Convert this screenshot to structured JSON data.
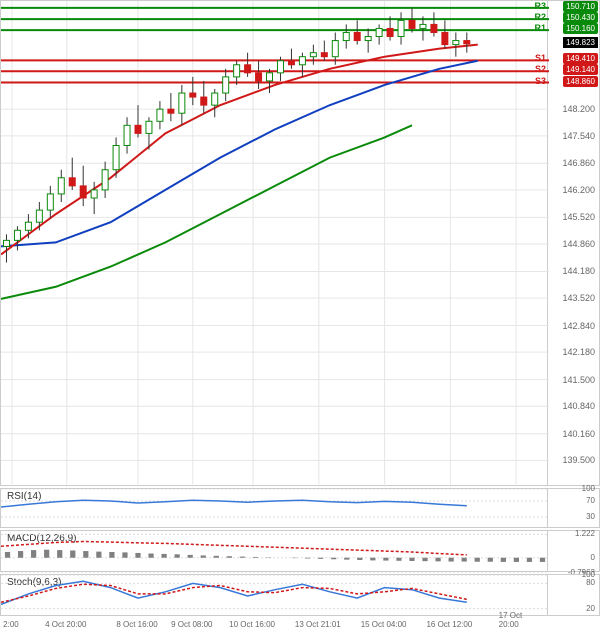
{
  "main": {
    "ylim": [
      138.84,
      150.88
    ],
    "yticks": [
      139.5,
      140.16,
      140.84,
      141.5,
      142.18,
      142.84,
      143.52,
      144.18,
      144.86,
      145.52,
      146.2,
      146.86,
      147.54,
      148.2,
      148.88
    ],
    "background_color": "#ffffff",
    "grid_color": "#e6e6e6",
    "current_price": 149.823,
    "resistance": [
      {
        "label": "R3",
        "value": 150.71,
        "color": "#0a8a0a",
        "badge_bg": "#0a8a0a"
      },
      {
        "label": "R2",
        "value": 150.43,
        "color": "#0a8a0a",
        "badge_bg": "#0a8a0a"
      },
      {
        "label": "R1",
        "value": 150.16,
        "color": "#0a8a0a",
        "badge_bg": "#0a8a0a"
      }
    ],
    "support": [
      {
        "label": "S1",
        "value": 149.41,
        "color": "#d01818",
        "badge_bg": "#d01818"
      },
      {
        "label": "S2",
        "value": 149.14,
        "color": "#d01818",
        "badge_bg": "#d01818"
      },
      {
        "label": "S3",
        "value": 148.86,
        "color": "#d01818",
        "badge_bg": "#d01818"
      }
    ],
    "xlabels": [
      "2:00",
      "4 Oct 20:00",
      "8 Oct 16:00",
      "9 Oct 08:00",
      "10 Oct 16:00",
      "13 Oct 21:01",
      "15 Oct 04:00",
      "16 Oct 12:00",
      "17 Oct 20:00"
    ],
    "xpositions": [
      0.02,
      0.12,
      0.25,
      0.35,
      0.46,
      0.58,
      0.7,
      0.82,
      0.94
    ],
    "candles": [
      {
        "x": 0.01,
        "o": 144.8,
        "h": 145.1,
        "l": 144.4,
        "c": 144.95
      },
      {
        "x": 0.03,
        "o": 144.95,
        "h": 145.3,
        "l": 144.7,
        "c": 145.2
      },
      {
        "x": 0.05,
        "o": 145.2,
        "h": 145.6,
        "l": 145.0,
        "c": 145.4
      },
      {
        "x": 0.07,
        "o": 145.4,
        "h": 145.9,
        "l": 145.2,
        "c": 145.7
      },
      {
        "x": 0.09,
        "o": 145.7,
        "h": 146.3,
        "l": 145.5,
        "c": 146.1
      },
      {
        "x": 0.11,
        "o": 146.1,
        "h": 146.7,
        "l": 145.9,
        "c": 146.5
      },
      {
        "x": 0.13,
        "o": 146.5,
        "h": 147.0,
        "l": 146.2,
        "c": 146.3
      },
      {
        "x": 0.15,
        "o": 146.3,
        "h": 146.8,
        "l": 145.8,
        "c": 146.0
      },
      {
        "x": 0.17,
        "o": 146.0,
        "h": 146.4,
        "l": 145.6,
        "c": 146.2
      },
      {
        "x": 0.19,
        "o": 146.2,
        "h": 146.9,
        "l": 146.0,
        "c": 146.7
      },
      {
        "x": 0.21,
        "o": 146.7,
        "h": 147.5,
        "l": 146.5,
        "c": 147.3
      },
      {
        "x": 0.23,
        "o": 147.3,
        "h": 148.0,
        "l": 147.1,
        "c": 147.8
      },
      {
        "x": 0.25,
        "o": 147.8,
        "h": 148.3,
        "l": 147.5,
        "c": 147.6
      },
      {
        "x": 0.27,
        "o": 147.6,
        "h": 148.0,
        "l": 147.2,
        "c": 147.9
      },
      {
        "x": 0.29,
        "o": 147.9,
        "h": 148.4,
        "l": 147.7,
        "c": 148.2
      },
      {
        "x": 0.31,
        "o": 148.2,
        "h": 148.6,
        "l": 147.9,
        "c": 148.1
      },
      {
        "x": 0.33,
        "o": 148.1,
        "h": 148.8,
        "l": 147.8,
        "c": 148.6
      },
      {
        "x": 0.35,
        "o": 148.6,
        "h": 149.0,
        "l": 148.3,
        "c": 148.5
      },
      {
        "x": 0.37,
        "o": 148.5,
        "h": 148.9,
        "l": 148.1,
        "c": 148.3
      },
      {
        "x": 0.39,
        "o": 148.3,
        "h": 148.7,
        "l": 148.0,
        "c": 148.6
      },
      {
        "x": 0.41,
        "o": 148.6,
        "h": 149.2,
        "l": 148.4,
        "c": 149.0
      },
      {
        "x": 0.43,
        "o": 149.0,
        "h": 149.4,
        "l": 148.8,
        "c": 149.3
      },
      {
        "x": 0.45,
        "o": 149.3,
        "h": 149.6,
        "l": 149.0,
        "c": 149.1
      },
      {
        "x": 0.47,
        "o": 149.1,
        "h": 149.4,
        "l": 148.7,
        "c": 148.9
      },
      {
        "x": 0.49,
        "o": 148.9,
        "h": 149.2,
        "l": 148.6,
        "c": 149.1
      },
      {
        "x": 0.51,
        "o": 149.1,
        "h": 149.5,
        "l": 148.9,
        "c": 149.4
      },
      {
        "x": 0.53,
        "o": 149.4,
        "h": 149.7,
        "l": 149.2,
        "c": 149.3
      },
      {
        "x": 0.55,
        "o": 149.3,
        "h": 149.6,
        "l": 149.0,
        "c": 149.5
      },
      {
        "x": 0.57,
        "o": 149.5,
        "h": 149.8,
        "l": 149.3,
        "c": 149.6
      },
      {
        "x": 0.59,
        "o": 149.6,
        "h": 149.9,
        "l": 149.4,
        "c": 149.5
      },
      {
        "x": 0.61,
        "o": 149.5,
        "h": 150.1,
        "l": 149.3,
        "c": 149.9
      },
      {
        "x": 0.63,
        "o": 149.9,
        "h": 150.3,
        "l": 149.7,
        "c": 150.1
      },
      {
        "x": 0.65,
        "o": 150.1,
        "h": 150.4,
        "l": 149.8,
        "c": 149.9
      },
      {
        "x": 0.67,
        "o": 149.9,
        "h": 150.2,
        "l": 149.6,
        "c": 150.0
      },
      {
        "x": 0.69,
        "o": 150.0,
        "h": 150.3,
        "l": 149.8,
        "c": 150.2
      },
      {
        "x": 0.71,
        "o": 150.2,
        "h": 150.5,
        "l": 149.9,
        "c": 150.0
      },
      {
        "x": 0.73,
        "o": 150.0,
        "h": 150.6,
        "l": 149.8,
        "c": 150.4
      },
      {
        "x": 0.75,
        "o": 150.4,
        "h": 150.7,
        "l": 150.1,
        "c": 150.2
      },
      {
        "x": 0.77,
        "o": 150.2,
        "h": 150.5,
        "l": 149.9,
        "c": 150.3
      },
      {
        "x": 0.79,
        "o": 150.3,
        "h": 150.6,
        "l": 150.0,
        "c": 150.1
      },
      {
        "x": 0.81,
        "o": 150.1,
        "h": 150.4,
        "l": 149.7,
        "c": 149.8
      },
      {
        "x": 0.83,
        "o": 149.8,
        "h": 150.1,
        "l": 149.5,
        "c": 149.9
      },
      {
        "x": 0.85,
        "o": 149.9,
        "h": 150.1,
        "l": 149.6,
        "c": 149.82
      }
    ],
    "ma_red": {
      "color": "#d01818",
      "width": 2,
      "pts": [
        [
          0.0,
          144.6
        ],
        [
          0.1,
          145.6
        ],
        [
          0.2,
          146.5
        ],
        [
          0.3,
          147.6
        ],
        [
          0.4,
          148.3
        ],
        [
          0.5,
          148.8
        ],
        [
          0.6,
          149.2
        ],
        [
          0.7,
          149.5
        ],
        [
          0.8,
          149.7
        ],
        [
          0.87,
          149.8
        ]
      ]
    },
    "ma_blue": {
      "color": "#1040c0",
      "width": 2,
      "pts": [
        [
          0.0,
          144.8
        ],
        [
          0.1,
          144.9
        ],
        [
          0.2,
          145.4
        ],
        [
          0.3,
          146.2
        ],
        [
          0.4,
          147.0
        ],
        [
          0.5,
          147.7
        ],
        [
          0.6,
          148.3
        ],
        [
          0.7,
          148.8
        ],
        [
          0.8,
          149.2
        ],
        [
          0.87,
          149.4
        ]
      ]
    },
    "ma_green": {
      "color": "#0a8a0a",
      "width": 2,
      "pts": [
        [
          0.0,
          143.5
        ],
        [
          0.1,
          143.8
        ],
        [
          0.2,
          144.3
        ],
        [
          0.3,
          144.9
        ],
        [
          0.4,
          145.6
        ],
        [
          0.5,
          146.3
        ],
        [
          0.6,
          147.0
        ],
        [
          0.7,
          147.5
        ],
        [
          0.75,
          147.8
        ]
      ]
    }
  },
  "rsi": {
    "label": "RSI(14)",
    "ylim": [
      0,
      100
    ],
    "yticks": [
      30,
      70,
      100
    ],
    "line_color": "#3878d8",
    "pts": [
      [
        0.0,
        55
      ],
      [
        0.05,
        62
      ],
      [
        0.1,
        68
      ],
      [
        0.15,
        72
      ],
      [
        0.2,
        70
      ],
      [
        0.25,
        65
      ],
      [
        0.3,
        68
      ],
      [
        0.35,
        72
      ],
      [
        0.4,
        70
      ],
      [
        0.45,
        67
      ],
      [
        0.5,
        70
      ],
      [
        0.55,
        72
      ],
      [
        0.6,
        68
      ],
      [
        0.65,
        66
      ],
      [
        0.7,
        69
      ],
      [
        0.75,
        67
      ],
      [
        0.8,
        62
      ],
      [
        0.85,
        58
      ]
    ]
  },
  "macd": {
    "label": "MACD(12,26,9)",
    "ylim": [
      -0.8,
      1.4
    ],
    "yticks": [
      -0.7963,
      0.0,
      1.222
    ],
    "line_color": "#d01818",
    "signal_color": "#808080",
    "hist_color": "#808080",
    "pts": [
      [
        0.0,
        0.6
      ],
      [
        0.05,
        0.7
      ],
      [
        0.1,
        0.8
      ],
      [
        0.15,
        0.85
      ],
      [
        0.2,
        0.82
      ],
      [
        0.25,
        0.78
      ],
      [
        0.3,
        0.75
      ],
      [
        0.35,
        0.7
      ],
      [
        0.4,
        0.65
      ],
      [
        0.45,
        0.6
      ],
      [
        0.5,
        0.55
      ],
      [
        0.55,
        0.5
      ],
      [
        0.6,
        0.45
      ],
      [
        0.65,
        0.4
      ],
      [
        0.7,
        0.35
      ],
      [
        0.75,
        0.3
      ],
      [
        0.8,
        0.22
      ],
      [
        0.85,
        0.15
      ]
    ],
    "hist": [
      0.3,
      0.35,
      0.4,
      0.42,
      0.4,
      0.38,
      0.35,
      0.32,
      0.3,
      0.28,
      0.25,
      0.22,
      0.2,
      0.18,
      0.15,
      0.12,
      0.1,
      0.08,
      0.06,
      0.04,
      0.02,
      0.0,
      -0.02,
      -0.04,
      -0.06,
      -0.08,
      -0.1,
      -0.12,
      -0.14,
      -0.15,
      -0.16,
      -0.17,
      -0.18,
      -0.19,
      -0.2,
      -0.2,
      -0.21,
      -0.21,
      -0.22,
      -0.22,
      -0.22,
      -0.22
    ]
  },
  "stoch": {
    "label": "Stoch(9,6,3)",
    "ylim": [
      0,
      100
    ],
    "yticks": [
      20,
      80,
      100
    ],
    "k_color": "#3878d8",
    "d_color": "#d01818",
    "k": [
      [
        0.0,
        30
      ],
      [
        0.05,
        55
      ],
      [
        0.1,
        75
      ],
      [
        0.15,
        85
      ],
      [
        0.2,
        70
      ],
      [
        0.25,
        45
      ],
      [
        0.3,
        60
      ],
      [
        0.35,
        80
      ],
      [
        0.4,
        70
      ],
      [
        0.45,
        50
      ],
      [
        0.5,
        65
      ],
      [
        0.55,
        78
      ],
      [
        0.6,
        60
      ],
      [
        0.65,
        45
      ],
      [
        0.7,
        70
      ],
      [
        0.75,
        65
      ],
      [
        0.8,
        45
      ],
      [
        0.85,
        35
      ]
    ],
    "d": [
      [
        0.0,
        35
      ],
      [
        0.05,
        50
      ],
      [
        0.1,
        68
      ],
      [
        0.15,
        78
      ],
      [
        0.2,
        75
      ],
      [
        0.25,
        55
      ],
      [
        0.3,
        55
      ],
      [
        0.35,
        70
      ],
      [
        0.4,
        75
      ],
      [
        0.45,
        60
      ],
      [
        0.5,
        58
      ],
      [
        0.55,
        70
      ],
      [
        0.6,
        68
      ],
      [
        0.65,
        55
      ],
      [
        0.7,
        60
      ],
      [
        0.75,
        68
      ],
      [
        0.8,
        55
      ],
      [
        0.85,
        42
      ]
    ]
  }
}
